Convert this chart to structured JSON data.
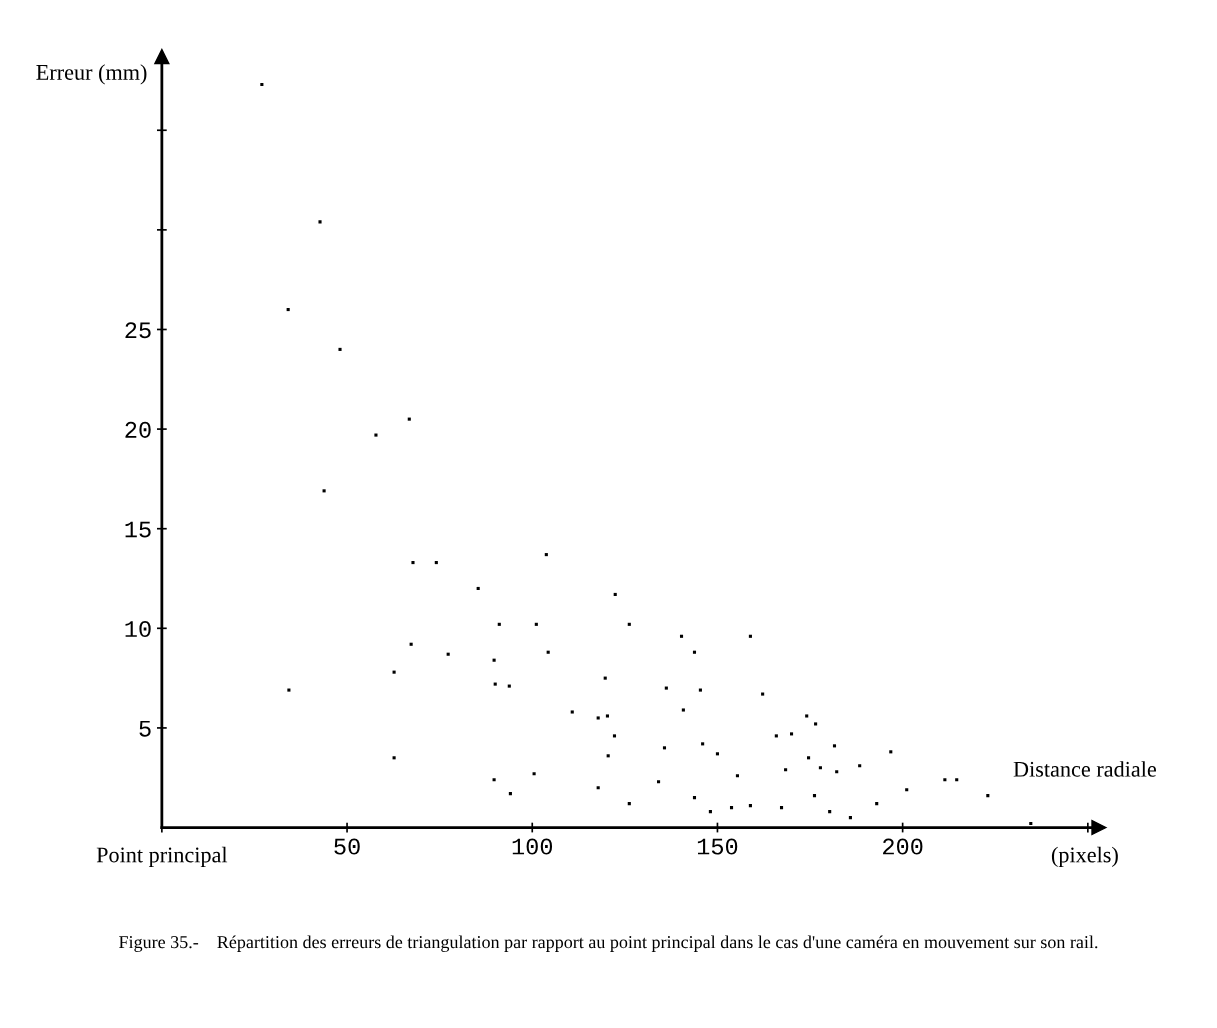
{
  "chart_data": {
    "type": "scatter",
    "xlabel": "Distance radiale",
    "ylabel": "Erreur (mm)",
    "x": [
      27.0,
      42.7,
      34.1,
      48.1,
      57.8,
      66.8,
      43.8,
      67.8,
      74.1,
      85.4,
      103.8,
      122.4,
      126.2,
      91.1,
      101.1,
      67.3,
      77.3,
      104.3,
      140.3,
      143.8,
      158.9,
      62.7,
      89.7,
      90.0,
      93.8,
      34.3,
      119.7,
      136.2,
      145.4,
      162.2,
      110.8,
      117.8,
      120.3,
      122.2,
      140.8,
      120.5,
      62.7,
      135.7,
      146.0,
      150.0,
      165.9,
      170.0,
      174.1,
      176.5,
      181.6,
      174.6,
      196.8,
      168.4,
      177.8,
      182.2,
      188.4,
      155.4,
      134.1,
      89.7,
      100.5,
      117.8,
      94.1,
      201.1,
      211.4,
      214.6,
      223.0,
      126.2,
      143.8,
      148.1,
      153.8,
      158.9,
      167.3,
      176.2,
      180.3,
      185.9,
      193.0,
      234.6
    ],
    "values": [
      37.3,
      30.4,
      26.0,
      24.0,
      19.7,
      20.5,
      16.9,
      13.3,
      13.3,
      12.0,
      13.7,
      11.7,
      10.2,
      10.2,
      10.2,
      9.2,
      8.7,
      8.8,
      9.6,
      8.8,
      9.6,
      7.8,
      8.4,
      7.2,
      7.1,
      6.9,
      7.5,
      7.0,
      6.9,
      6.7,
      5.8,
      5.5,
      5.6,
      4.6,
      5.9,
      3.6,
      3.5,
      4.0,
      4.2,
      3.7,
      4.6,
      4.7,
      5.6,
      5.2,
      4.1,
      3.5,
      3.8,
      2.9,
      3.0,
      2.8,
      3.1,
      2.6,
      2.3,
      2.4,
      2.7,
      2.0,
      1.7,
      1.9,
      2.4,
      2.4,
      1.6,
      1.2,
      1.5,
      0.8,
      1.0,
      1.1,
      1.0,
      1.6,
      0.8,
      0.5,
      1.2,
      0.2
    ],
    "color": "#000000",
    "marker": "square",
    "grid": false,
    "legend": false,
    "xlim": [
      0,
      253
    ],
    "ylim": [
      0,
      38.7
    ],
    "xticks": [
      {
        "value": 0,
        "label": null
      },
      50,
      100,
      150,
      200,
      {
        "value": 250,
        "label": null
      }
    ],
    "yticks": [
      5,
      10,
      15,
      20,
      25,
      {
        "value": 30,
        "label": null
      },
      {
        "value": 35,
        "label": null
      }
    ],
    "annotations": [
      "(pixels)",
      "Point principal",
      "Figure 35.-    Répartition des erreurs de triangulation par rapport au point principal dans le cas d'une caméra en mouvement sur son rail."
    ]
  }
}
